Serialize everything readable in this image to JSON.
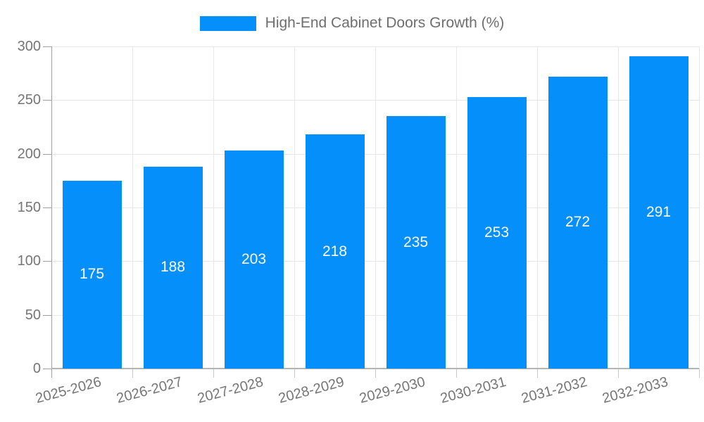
{
  "legend": {
    "label": "High-End Cabinet Doors Growth (%)"
  },
  "chart_data": {
    "type": "bar",
    "title": "High-End Cabinet Doors Growth (%)",
    "series_name": "High-End Cabinet Doors Growth (%)",
    "categories": [
      "2025-2026",
      "2026-2027",
      "2027-2028",
      "2028-2029",
      "2029-2030",
      "2030-2031",
      "2031-2032",
      "2032-2033"
    ],
    "values": [
      175,
      188,
      203,
      218,
      235,
      253,
      272,
      291
    ],
    "xlabel": "",
    "ylabel": "",
    "ylim": [
      0,
      300
    ],
    "yticks": [
      0,
      50,
      100,
      150,
      200,
      250,
      300
    ],
    "grid": true,
    "legend_position": "top-center",
    "value_labels": "inside-middle",
    "x_label_rotation_deg": -15,
    "colors": {
      "bar": "#058FFB",
      "value_label": "#ffffff",
      "axis_text": "#757575",
      "legend_text": "#6e6e6e",
      "gridline": "#e7e7e7",
      "axis_line": "#9e9e9e",
      "baseline": "#b3b3b3",
      "background": "#ffffff"
    }
  }
}
